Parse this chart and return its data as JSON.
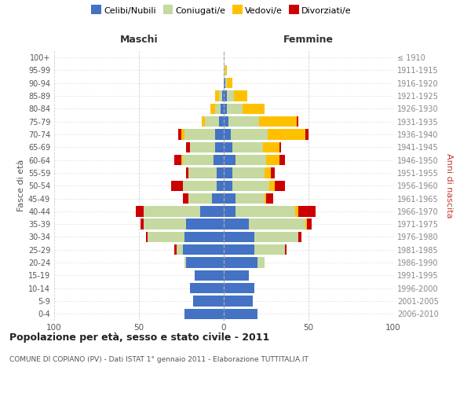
{
  "age_groups": [
    "0-4",
    "5-9",
    "10-14",
    "15-19",
    "20-24",
    "25-29",
    "30-34",
    "35-39",
    "40-44",
    "45-49",
    "50-54",
    "55-59",
    "60-64",
    "65-69",
    "70-74",
    "75-79",
    "80-84",
    "85-89",
    "90-94",
    "95-99",
    "100+"
  ],
  "birth_years": [
    "2006-2010",
    "2001-2005",
    "1996-2000",
    "1991-1995",
    "1986-1990",
    "1981-1985",
    "1976-1980",
    "1971-1975",
    "1966-1970",
    "1961-1965",
    "1956-1960",
    "1951-1955",
    "1946-1950",
    "1941-1945",
    "1936-1940",
    "1931-1935",
    "1926-1930",
    "1921-1925",
    "1916-1920",
    "1911-1915",
    "≤ 1910"
  ],
  "maschi_celibi": [
    23,
    18,
    20,
    17,
    22,
    24,
    23,
    22,
    14,
    7,
    4,
    4,
    6,
    5,
    5,
    3,
    2,
    1,
    0,
    0,
    0
  ],
  "maschi_coniugati": [
    0,
    0,
    0,
    0,
    1,
    4,
    22,
    25,
    33,
    14,
    20,
    17,
    18,
    15,
    18,
    8,
    3,
    2,
    0,
    0,
    0
  ],
  "maschi_vedovi": [
    0,
    0,
    0,
    0,
    0,
    0,
    0,
    0,
    0,
    0,
    0,
    0,
    1,
    0,
    2,
    2,
    3,
    2,
    0,
    0,
    0
  ],
  "maschi_divorziati": [
    0,
    0,
    0,
    0,
    0,
    1,
    1,
    2,
    5,
    3,
    7,
    1,
    4,
    2,
    2,
    0,
    0,
    0,
    0,
    0,
    0
  ],
  "femmine_celibi": [
    20,
    17,
    18,
    15,
    20,
    18,
    18,
    15,
    7,
    7,
    5,
    5,
    7,
    5,
    4,
    3,
    2,
    2,
    1,
    0,
    0
  ],
  "femmine_coniugati": [
    0,
    0,
    0,
    0,
    4,
    18,
    26,
    33,
    35,
    17,
    22,
    19,
    18,
    18,
    22,
    18,
    9,
    4,
    1,
    1,
    0
  ],
  "femmine_vedovi": [
    0,
    0,
    0,
    0,
    0,
    0,
    0,
    1,
    2,
    1,
    3,
    4,
    8,
    10,
    22,
    22,
    13,
    8,
    3,
    1,
    0
  ],
  "femmine_divorziati": [
    0,
    0,
    0,
    0,
    0,
    1,
    2,
    3,
    10,
    4,
    6,
    2,
    3,
    1,
    2,
    1,
    0,
    0,
    0,
    0,
    0
  ],
  "colors": {
    "celibi": "#4472c4",
    "coniugati": "#c5d9a0",
    "vedovi": "#ffc000",
    "divorziati": "#cc0000"
  },
  "title": "Popolazione per età, sesso e stato civile - 2011",
  "subtitle": "COMUNE DI COPIANO (PV) - Dati ISTAT 1° gennaio 2011 - Elaborazione TUTTITALIA.IT",
  "ylabel_left": "Fasce di età",
  "ylabel_right": "Anni di nascita",
  "xlabel_left": "Maschi",
  "xlabel_right": "Femmine",
  "xlim": 100,
  "bg_color": "#ffffff",
  "grid_color": "#cccccc",
  "bar_height": 0.82
}
